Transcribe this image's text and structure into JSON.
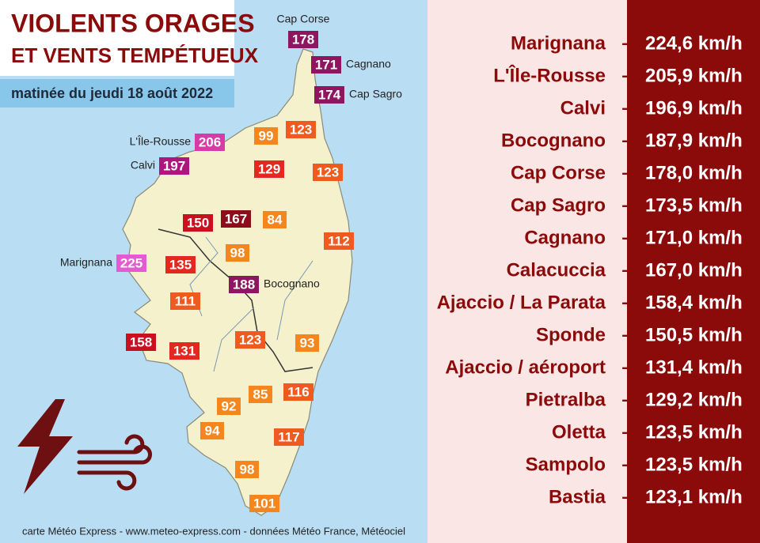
{
  "header": {
    "title_line1": "VIOLENTS ORAGES",
    "title_line2": "ET VENTS TEMPÉTUEUX",
    "subtitle": "matinée du jeudi 18 août 2022"
  },
  "markers": [
    {
      "value": "178",
      "label": "Cap Corse",
      "color": "#8e1560"
    },
    {
      "value": "171",
      "label": "Cagnano",
      "color": "#8e1560"
    },
    {
      "value": "174",
      "label": "Cap Sagro",
      "color": "#8e1560"
    },
    {
      "value": "99",
      "color": "#f5861e"
    },
    {
      "value": "123",
      "color": "#ef5a1e"
    },
    {
      "value": "206",
      "label": "L'Île-Rousse",
      "color": "#d83aa8"
    },
    {
      "value": "197",
      "label": "Calvi",
      "color": "#b0157e"
    },
    {
      "value": "129",
      "color": "#e3291f"
    },
    {
      "value": "123",
      "color": "#ef5a1e"
    },
    {
      "value": "150",
      "color": "#c8101e"
    },
    {
      "value": "167",
      "color": "#8b0e1a"
    },
    {
      "value": "84",
      "color": "#f5861e"
    },
    {
      "value": "112",
      "color": "#ef5a1e"
    },
    {
      "value": "98",
      "color": "#f5861e"
    },
    {
      "value": "225",
      "label": "Marignana",
      "color": "#e35bd0"
    },
    {
      "value": "135",
      "color": "#e3291f"
    },
    {
      "value": "188",
      "label": "Bocognano",
      "color": "#8e1560"
    },
    {
      "value": "111",
      "color": "#ef5a1e"
    },
    {
      "value": "158",
      "color": "#c8101e"
    },
    {
      "value": "131",
      "color": "#e3291f"
    },
    {
      "value": "123",
      "color": "#ef5a1e"
    },
    {
      "value": "93",
      "color": "#f5861e"
    },
    {
      "value": "116",
      "color": "#ef5a1e"
    },
    {
      "value": "85",
      "color": "#f5861e"
    },
    {
      "value": "92",
      "color": "#f5861e"
    },
    {
      "value": "94",
      "color": "#f5861e"
    },
    {
      "value": "117",
      "color": "#ef5a1e"
    },
    {
      "value": "98",
      "color": "#f5861e"
    },
    {
      "value": "101",
      "color": "#f5861e"
    }
  ],
  "ranking": [
    {
      "name": "Marignana",
      "separator": "–",
      "value": "224,6 km/h"
    },
    {
      "name": "L'Île-Rousse",
      "separator": "–",
      "value": "205,9 km/h"
    },
    {
      "name": "Calvi",
      "separator": "–",
      "value": "196,9 km/h"
    },
    {
      "name": "Bocognano",
      "separator": "–",
      "value": "187,9 km/h"
    },
    {
      "name": "Cap Corse",
      "separator": "–",
      "value": "178,0 km/h"
    },
    {
      "name": "Cap Sagro",
      "separator": "–",
      "value": "173,5 km/h"
    },
    {
      "name": "Cagnano",
      "separator": "–",
      "value": "171,0 km/h"
    },
    {
      "name": "Calacuccia",
      "separator": "–",
      "value": "167,0 km/h"
    },
    {
      "name": "Ajaccio / La Parata",
      "separator": "–",
      "value": "158,4 km/h"
    },
    {
      "name": "Sponde",
      "separator": "–",
      "value": "150,5 km/h"
    },
    {
      "name": "Ajaccio / aéroport",
      "separator": "–",
      "value": "131,4 km/h"
    },
    {
      "name": "Pietralba",
      "separator": "–",
      "value": "129,2 km/h"
    },
    {
      "name": "Oletta",
      "separator": "–",
      "value": "123,5 km/h"
    },
    {
      "name": "Sampolo",
      "separator": "–",
      "value": "123,5 km/h"
    },
    {
      "name": "Bastia",
      "separator": "–",
      "value": "123,1 km/h"
    }
  ],
  "footer": "carte Météo Express - www.meteo-express.com - données Météo France, Météociel"
}
